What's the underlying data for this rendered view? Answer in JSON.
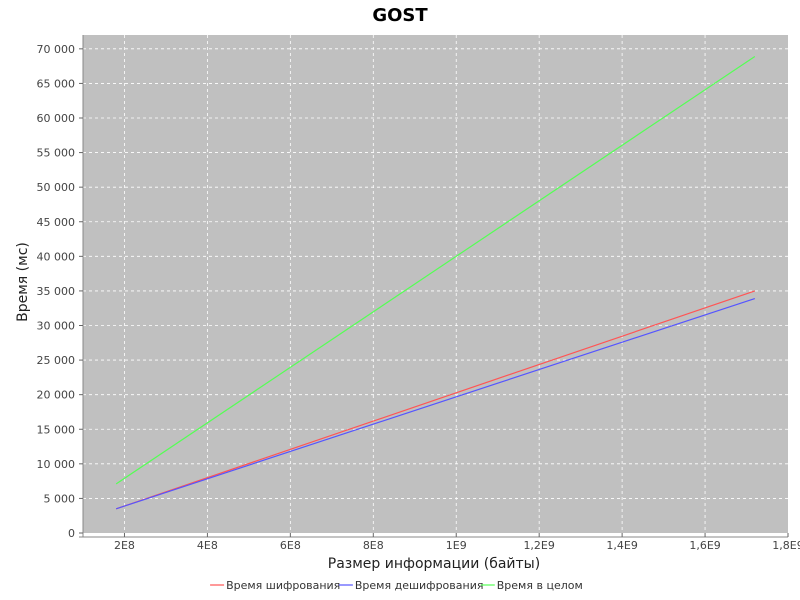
{
  "chart_data": {
    "type": "line",
    "title": "GOST",
    "xlabel": "Размер информации (байты)",
    "ylabel": "Время (мс)",
    "xlim": [
      100000000,
      1800000000
    ],
    "ylim": [
      0,
      72000
    ],
    "x_ticks": [
      200000000,
      400000000,
      600000000,
      800000000,
      1000000000,
      1200000000,
      1400000000,
      1600000000,
      1800000000
    ],
    "x_tick_labels": [
      "2E8",
      "4E8",
      "6E8",
      "8E8",
      "1E9",
      "1,2E9",
      "1,4E9",
      "1,6E9",
      "1,8E9"
    ],
    "y_ticks": [
      0,
      5000,
      10000,
      15000,
      20000,
      25000,
      30000,
      35000,
      40000,
      45000,
      50000,
      55000,
      60000,
      65000,
      70000
    ],
    "y_tick_labels": [
      "0",
      "5 000",
      "10 000",
      "15 000",
      "20 000",
      "25 000",
      "30 000",
      "35 000",
      "40 000",
      "45 000",
      "50 000",
      "55 000",
      "60 000",
      "65 000",
      "70 000"
    ],
    "grid": true,
    "legend_position": "bottom",
    "background": "#c0c0c0",
    "series": [
      {
        "name": "Время шифрования",
        "color": "#ff5555",
        "x": [
          180000000,
          1720000000
        ],
        "y": [
          3500,
          35000
        ]
      },
      {
        "name": "Время дешифрования",
        "color": "#5555ff",
        "x": [
          180000000,
          1720000000
        ],
        "y": [
          3500,
          33900
        ]
      },
      {
        "name": "Время в целом",
        "color": "#55ff55",
        "x": [
          180000000,
          1720000000
        ],
        "y": [
          7100,
          68900
        ]
      }
    ]
  }
}
